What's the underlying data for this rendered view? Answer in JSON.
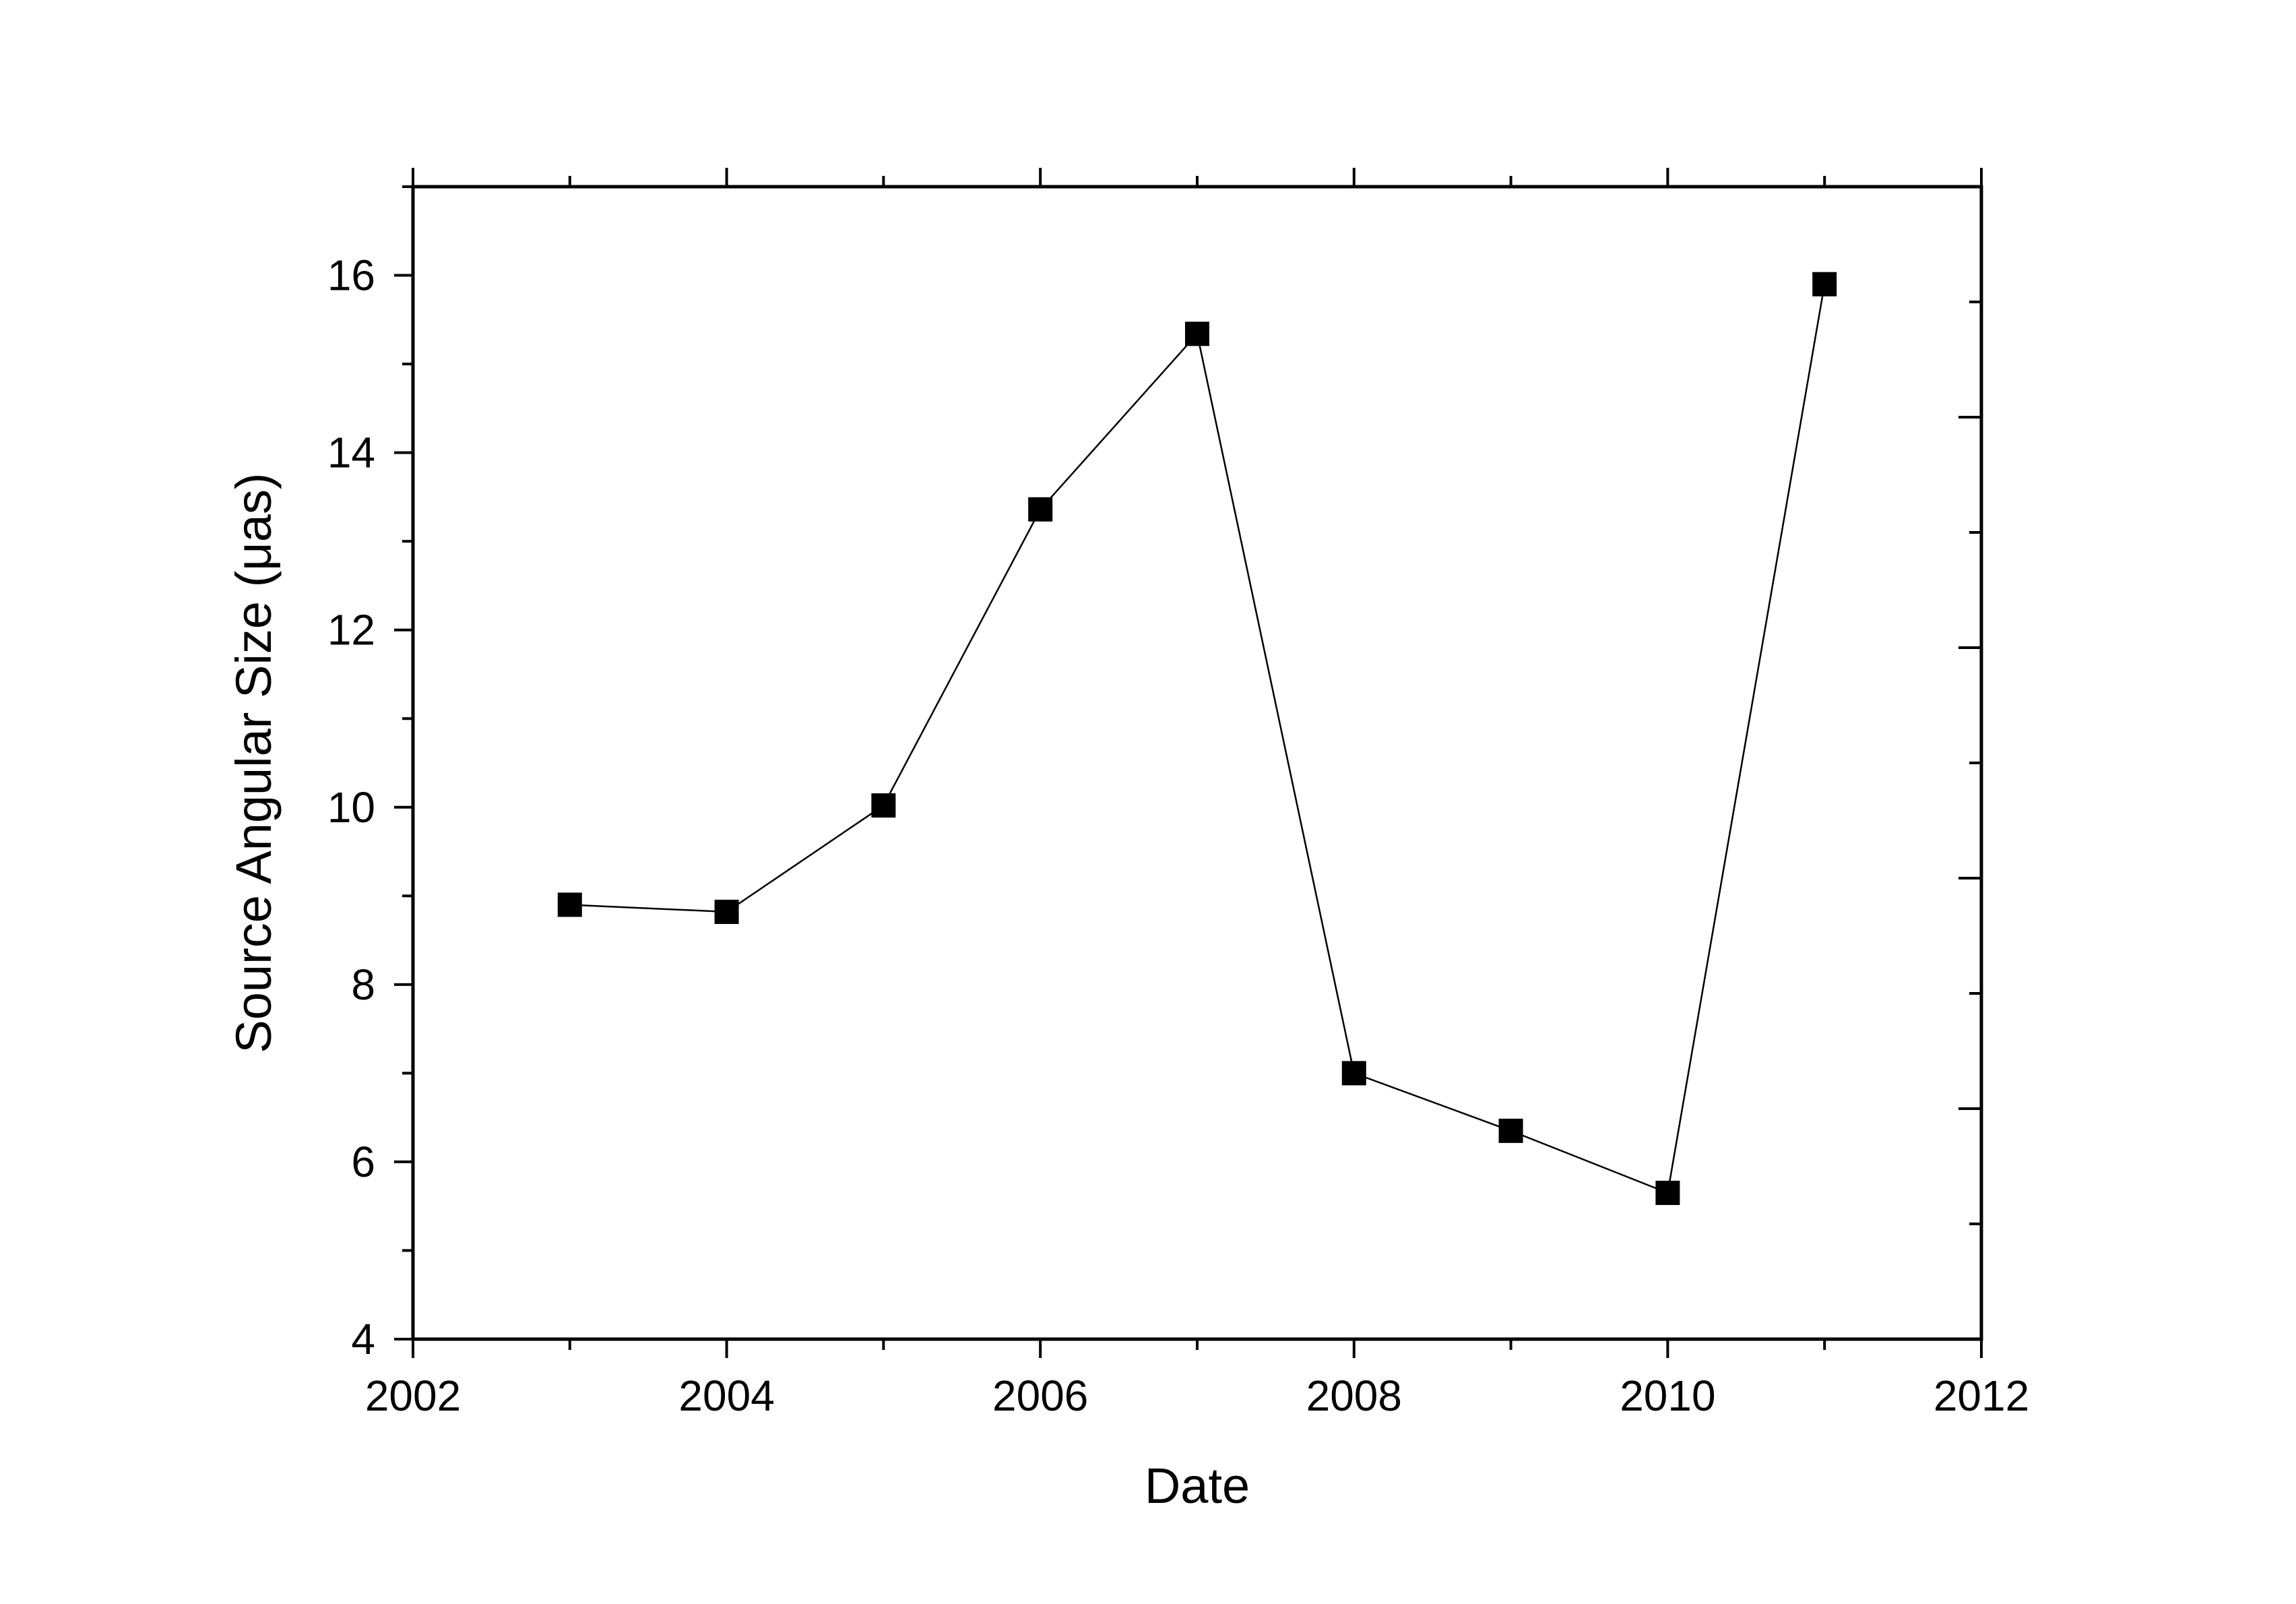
{
  "chart_data": {
    "type": "line",
    "title": "",
    "xlabel": "Date",
    "ylabel": "Source Angular Size (μas)",
    "xlim": [
      2002,
      2012
    ],
    "ylim": [
      4,
      17
    ],
    "x_ticks": [
      2002,
      2004,
      2006,
      2008,
      2010,
      2012
    ],
    "y_ticks": [
      4,
      6,
      8,
      10,
      12,
      14,
      16
    ],
    "grid": false,
    "legend": "none",
    "marker": "square",
    "color": "#000000",
    "series": [
      {
        "x": [
          2003,
          2004,
          2005,
          2006,
          2007,
          2008,
          2009,
          2010,
          2011
        ],
        "y": [
          8.9,
          8.82,
          10.02,
          13.36,
          15.34,
          7.0,
          6.35,
          5.65,
          15.9
        ]
      }
    ]
  }
}
